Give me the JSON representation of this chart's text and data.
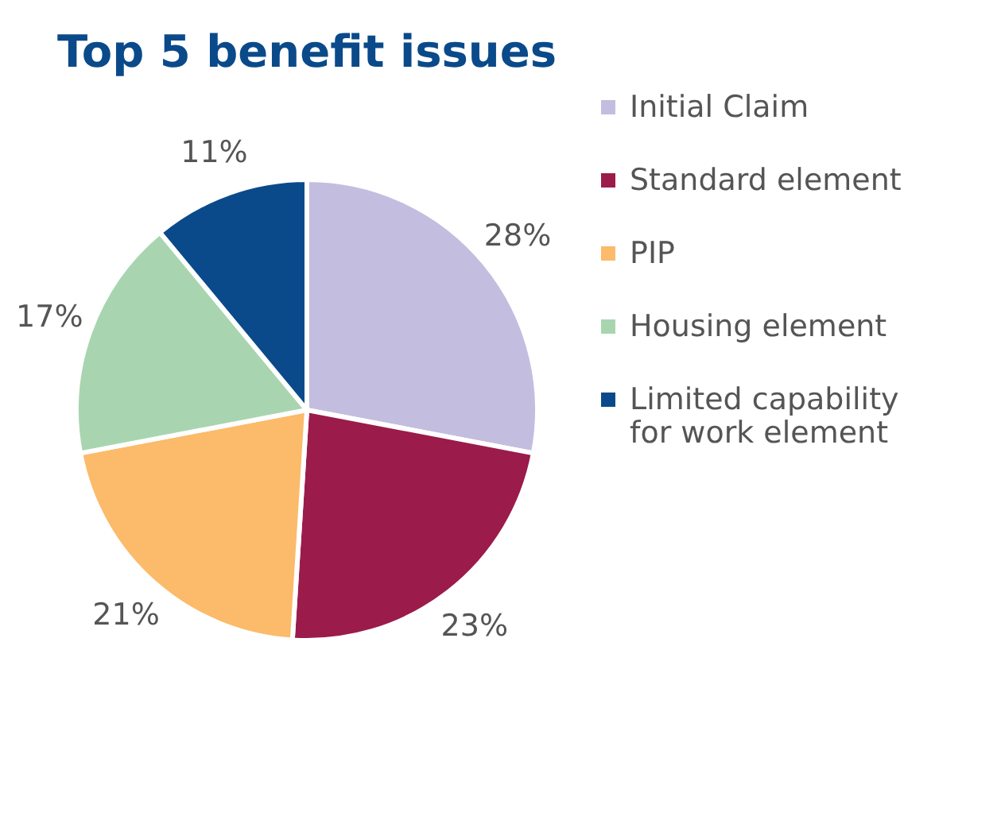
{
  "chart_data": {
    "type": "pie",
    "title": "Top 5 benefit issues",
    "categories": [
      "Initial Claim",
      "Standard element",
      "PIP",
      "Housing element",
      "Limited capability for work element"
    ],
    "values": [
      28,
      23,
      21,
      17,
      11
    ],
    "value_labels": [
      "28%",
      "23%",
      "21%",
      "17%",
      "11%"
    ],
    "colors": [
      "#c3bde0",
      "#9b1b4b",
      "#fbbb6a",
      "#a8d5b0",
      "#0a4a8a"
    ],
    "legend": "right"
  }
}
